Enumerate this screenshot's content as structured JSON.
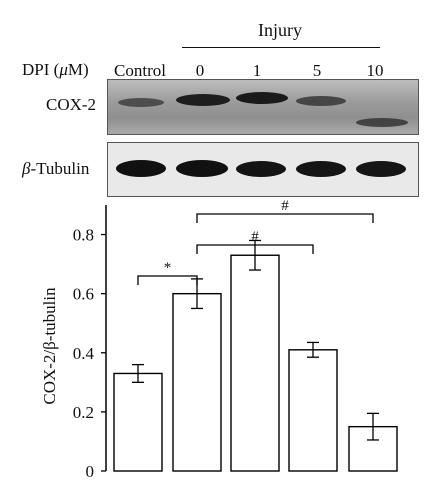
{
  "blot": {
    "injury_label": "Injury",
    "dpi_label": "DPI (μM)",
    "lanes": [
      "Control",
      "0",
      "1",
      "5",
      "10"
    ],
    "cox2_label": "COX-2",
    "tubulin_label": "β-Tubulin"
  },
  "chart_data": {
    "type": "bar",
    "categories": [
      "Control",
      "0",
      "1",
      "5",
      "10"
    ],
    "values": [
      0.33,
      0.6,
      0.73,
      0.41,
      0.15
    ],
    "errors": [
      0.03,
      0.05,
      0.05,
      0.025,
      0.045
    ],
    "ylabel": "COX-2/β-tubulin",
    "xlabel": "",
    "ylim": [
      0,
      0.9
    ],
    "yticks": [
      0,
      0.2,
      0.4,
      0.6,
      0.8
    ],
    "ytick_labels": [
      "0",
      "0.2",
      "0.4",
      "0.6",
      "0.8"
    ],
    "grid": false,
    "bar_fill": "#ffffff",
    "bar_stroke": "#000000",
    "significance": [
      {
        "from": "Control",
        "to": "0",
        "symbol": "*"
      },
      {
        "from": "0",
        "to": "5",
        "symbol": "#"
      },
      {
        "from": "0",
        "to": "10",
        "symbol": "#"
      }
    ]
  }
}
